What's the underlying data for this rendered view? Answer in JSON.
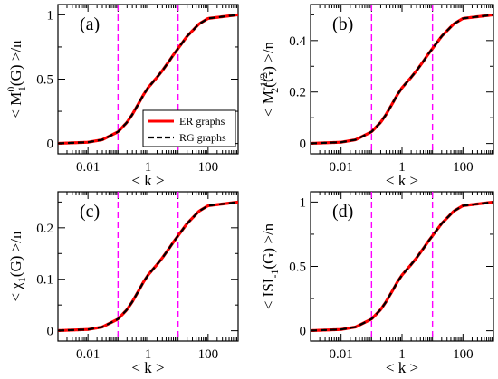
{
  "chart_data": [
    {
      "type": "line",
      "panel_label": "(a)",
      "ylabel": {
        "base": "< M",
        "sub": "1",
        "sup": "0",
        "tail": "(G) >/n"
      },
      "xlabel": "< k >",
      "xscale": "log",
      "xlim": [
        0.001,
        1000
      ],
      "ylim": [
        -0.08,
        1.08
      ],
      "xticks": [
        0.01,
        1,
        100
      ],
      "xtick_labels": [
        "0.01",
        "1",
        "100"
      ],
      "yticks": [
        0,
        0.5,
        1
      ],
      "ytick_labels": [
        "0",
        "0.5",
        "1"
      ],
      "vlines": [
        0.1,
        10
      ],
      "plateau": 1.0,
      "legend": {
        "placement": "bottom-right",
        "entries": [
          "ER graphs",
          "RG graphs"
        ]
      },
      "series": [
        {
          "name": "ER graphs",
          "color": "#ff0000",
          "style": "solid",
          "x": [
            0.001,
            0.01,
            0.03,
            0.1,
            0.2,
            0.3,
            0.5,
            0.7,
            1,
            1.5,
            2,
            3,
            5,
            7,
            10,
            20,
            50,
            100,
            1000
          ],
          "y": [
            0.001,
            0.0099,
            0.0291,
            0.0906,
            0.1648,
            0.2257,
            0.3161,
            0.3776,
            0.4323,
            0.481,
            0.5148,
            0.5663,
            0.6388,
            0.6893,
            0.7384,
            0.8334,
            0.9294,
            0.9717,
            1.0
          ]
        },
        {
          "name": "RG graphs",
          "color": "#000000",
          "style": "dashed",
          "x": [
            0.001,
            0.01,
            0.03,
            0.1,
            0.2,
            0.3,
            0.5,
            0.7,
            1,
            1.5,
            2,
            3,
            5,
            7,
            10,
            20,
            50,
            100,
            1000
          ],
          "y": [
            0.001,
            0.0099,
            0.0291,
            0.0906,
            0.1648,
            0.2257,
            0.3161,
            0.3776,
            0.4323,
            0.481,
            0.5148,
            0.5663,
            0.6388,
            0.6893,
            0.7384,
            0.8334,
            0.9294,
            0.9717,
            1.0
          ]
        }
      ]
    },
    {
      "type": "line",
      "panel_label": "(b)",
      "ylabel": {
        "base": "< M",
        "sub": "2",
        "sup": "-1/2",
        "tail": "(G) >/n"
      },
      "xlabel": "< k >",
      "xscale": "log",
      "xlim": [
        0.001,
        1000
      ],
      "ylim": [
        -0.04,
        0.54
      ],
      "xticks": [
        0.01,
        1,
        100
      ],
      "xtick_labels": [
        "0.01",
        "1",
        "100"
      ],
      "yticks": [
        0,
        0.2,
        0.4
      ],
      "ytick_labels": [
        "0",
        "0.2",
        "0.4"
      ],
      "vlines": [
        0.1,
        10
      ],
      "plateau": 0.5,
      "series": [
        {
          "name": "ER graphs",
          "color": "#ff0000",
          "style": "solid",
          "x": [
            0.001,
            0.01,
            0.03,
            0.1,
            0.2,
            0.3,
            0.5,
            0.7,
            1,
            1.5,
            2,
            3,
            5,
            7,
            10,
            20,
            50,
            100,
            1000
          ],
          "y": [
            0.0005,
            0.005,
            0.0145,
            0.0453,
            0.0824,
            0.1128,
            0.1581,
            0.1888,
            0.2162,
            0.2405,
            0.2574,
            0.2832,
            0.3194,
            0.3447,
            0.3692,
            0.4167,
            0.4647,
            0.4859,
            0.5
          ]
        },
        {
          "name": "RG graphs",
          "color": "#000000",
          "style": "dashed",
          "x": [
            0.001,
            0.01,
            0.03,
            0.1,
            0.2,
            0.3,
            0.5,
            0.7,
            1,
            1.5,
            2,
            3,
            5,
            7,
            10,
            20,
            50,
            100,
            1000
          ],
          "y": [
            0.0005,
            0.005,
            0.0145,
            0.0453,
            0.0824,
            0.1128,
            0.1581,
            0.1888,
            0.2162,
            0.2405,
            0.2574,
            0.2832,
            0.3194,
            0.3447,
            0.3692,
            0.4167,
            0.4647,
            0.4859,
            0.5
          ]
        }
      ]
    },
    {
      "type": "line",
      "panel_label": "(c)",
      "ylabel": {
        "base": "< χ",
        "sub": "1",
        "sup": "",
        "tail": "(G) >/n"
      },
      "xlabel": "< k >",
      "xscale": "log",
      "xlim": [
        0.001,
        1000
      ],
      "ylim": [
        -0.02,
        0.27
      ],
      "xticks": [
        0.01,
        1,
        100
      ],
      "xtick_labels": [
        "0.01",
        "1",
        "100"
      ],
      "yticks": [
        0,
        0.1,
        0.2
      ],
      "ytick_labels": [
        "0",
        "0.1",
        "0.2"
      ],
      "vlines": [
        0.1,
        10
      ],
      "plateau": 0.25,
      "series": [
        {
          "name": "ER graphs",
          "color": "#ff0000",
          "style": "solid",
          "x": [
            0.001,
            0.01,
            0.03,
            0.1,
            0.2,
            0.3,
            0.5,
            0.7,
            1,
            1.5,
            2,
            3,
            5,
            7,
            10,
            20,
            50,
            100,
            1000
          ],
          "y": [
            0.0003,
            0.0025,
            0.0073,
            0.0227,
            0.0412,
            0.0564,
            0.079,
            0.0944,
            0.1081,
            0.1203,
            0.1287,
            0.1416,
            0.1597,
            0.1723,
            0.1846,
            0.2083,
            0.2323,
            0.2429,
            0.25
          ]
        },
        {
          "name": "RG graphs",
          "color": "#000000",
          "style": "dashed",
          "x": [
            0.001,
            0.01,
            0.03,
            0.1,
            0.2,
            0.3,
            0.5,
            0.7,
            1,
            1.5,
            2,
            3,
            5,
            7,
            10,
            20,
            50,
            100,
            1000
          ],
          "y": [
            0.0003,
            0.0025,
            0.0073,
            0.0227,
            0.0412,
            0.0564,
            0.079,
            0.0944,
            0.1081,
            0.1203,
            0.1287,
            0.1416,
            0.1597,
            0.1723,
            0.1846,
            0.2083,
            0.2323,
            0.2429,
            0.25
          ]
        }
      ]
    },
    {
      "type": "line",
      "panel_label": "(d)",
      "ylabel": {
        "base": "< ISI",
        "sub": "-1",
        "sup": "",
        "tail": "(G) >/n"
      },
      "xlabel": "< k >",
      "xscale": "log",
      "xlim": [
        0.001,
        1000
      ],
      "ylim": [
        -0.08,
        1.08
      ],
      "xticks": [
        0.01,
        1,
        100
      ],
      "xtick_labels": [
        "0.01",
        "1",
        "100"
      ],
      "yticks": [
        0,
        0.5,
        1
      ],
      "ytick_labels": [
        "0",
        "0.5",
        "1"
      ],
      "vlines": [
        0.1,
        10
      ],
      "plateau": 1.0,
      "series": [
        {
          "name": "ER graphs",
          "color": "#ff0000",
          "style": "solid",
          "x": [
            0.001,
            0.01,
            0.03,
            0.1,
            0.2,
            0.3,
            0.5,
            0.7,
            1,
            1.5,
            2,
            3,
            5,
            7,
            10,
            20,
            50,
            100,
            1000
          ],
          "y": [
            0.001,
            0.0099,
            0.0291,
            0.0906,
            0.1648,
            0.2257,
            0.3161,
            0.3776,
            0.4323,
            0.481,
            0.5148,
            0.5663,
            0.6388,
            0.6893,
            0.7384,
            0.8334,
            0.9294,
            0.9717,
            1.0
          ]
        },
        {
          "name": "RG graphs",
          "color": "#000000",
          "style": "dashed",
          "x": [
            0.001,
            0.01,
            0.03,
            0.1,
            0.2,
            0.3,
            0.5,
            0.7,
            1,
            1.5,
            2,
            3,
            5,
            7,
            10,
            20,
            50,
            100,
            1000
          ],
          "y": [
            0.001,
            0.0099,
            0.0291,
            0.0906,
            0.1648,
            0.2257,
            0.3161,
            0.3776,
            0.4323,
            0.481,
            0.5148,
            0.5663,
            0.6388,
            0.6893,
            0.7384,
            0.8334,
            0.9294,
            0.9717,
            1.0
          ]
        }
      ]
    }
  ]
}
